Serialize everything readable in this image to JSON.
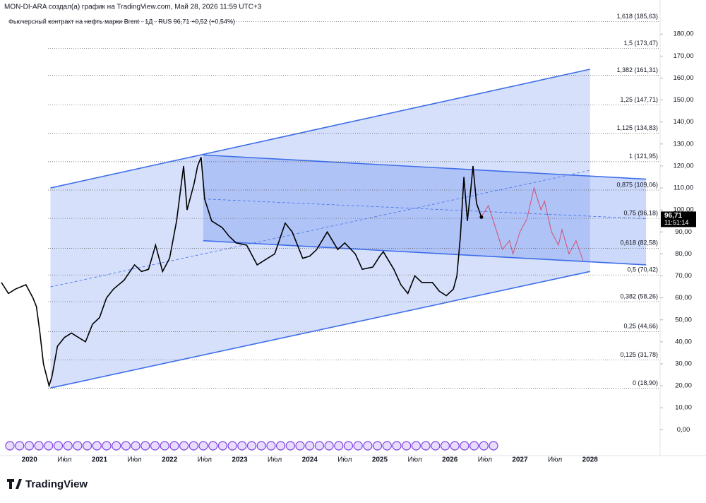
{
  "header": {
    "credit": "MON-DI-ARA создал(а) график на TradingView.com, Май 28, 2026 11:59 UTC+3",
    "logo": "TradingView"
  },
  "chart_data": {
    "type": "line",
    "title": "Фьючерсный контракт на нефть марки Brent · 1Д · RUS  96,71  +0,52 (+0,54%)",
    "price_tag": {
      "value": 96.71,
      "label": "96,71",
      "time": "11:51:14"
    },
    "xlim": [
      2019.58,
      2029.0
    ],
    "xticks": [
      2020,
      {
        "value": 2020.5,
        "label": "Июл"
      },
      2021,
      {
        "value": 2021.5,
        "label": "Июл"
      },
      2022,
      {
        "value": 2022.5,
        "label": "Июл"
      },
      2023,
      {
        "value": 2023.5,
        "label": "Июл"
      },
      2024,
      {
        "value": 2024.5,
        "label": "Июл"
      },
      2025,
      {
        "value": 2025.5,
        "label": "Июл"
      },
      2026,
      {
        "value": 2026.5,
        "label": "Июл"
      },
      2027,
      {
        "value": 2027.5,
        "label": "Июл"
      },
      2028
    ],
    "ylim": [
      -6,
      195.5
    ],
    "yticks": [
      {
        "value": 0,
        "label": "0,00"
      },
      {
        "value": 10,
        "label": "10,00"
      },
      {
        "value": 20,
        "label": "20,00"
      },
      {
        "value": 30,
        "label": "30,00"
      },
      {
        "value": 40,
        "label": "40,00"
      },
      {
        "value": 50,
        "label": "50,00"
      },
      {
        "value": 60,
        "label": "60,00"
      },
      {
        "value": 70,
        "label": "70,00"
      },
      {
        "value": 80,
        "label": "80,00"
      },
      {
        "value": 90,
        "label": "90,00"
      },
      {
        "value": 100,
        "label": "100,00"
      },
      {
        "value": 110,
        "label": "110,00"
      },
      {
        "value": 120,
        "label": "120,00"
      },
      {
        "value": 130,
        "label": "130,00"
      },
      {
        "value": 140,
        "label": "140,00"
      },
      {
        "value": 150,
        "label": "150,00"
      },
      {
        "value": 160,
        "label": "160,00"
      },
      {
        "value": 170,
        "label": "170,00"
      },
      {
        "value": 180,
        "label": "180,00"
      }
    ],
    "fib_levels": [
      {
        "value": 185.63,
        "label": "1,618 (185,63)"
      },
      {
        "value": 173.47,
        "label": "1,5 (173,47)"
      },
      {
        "value": 161.31,
        "label": "1,382 (161,31)"
      },
      {
        "value": 147.71,
        "label": "1,25 (147,71)"
      },
      {
        "value": 134.83,
        "label": "1,125 (134,83)"
      },
      {
        "value": 121.95,
        "label": "1 (121,95)"
      },
      {
        "value": 109.06,
        "label": "0,875 (109,06)"
      },
      {
        "value": 96.18,
        "label": "0,75 (96,18)"
      },
      {
        "value": 82.58,
        "label": "0,618 (82,58)"
      },
      {
        "value": 70.42,
        "label": "0,5 (70,42)"
      },
      {
        "value": 58.26,
        "label": "0,382 (58,26)"
      },
      {
        "value": 44.66,
        "label": "0,25 (44,66)"
      },
      {
        "value": 31.78,
        "label": "0,125 (31,78)"
      },
      {
        "value": 18.9,
        "label": "0 (18,90)"
      }
    ],
    "channels": [
      {
        "color": "#3d6ee8",
        "fill": "rgba(90,130,240,0.25)",
        "upper": [
          [
            2020.3,
            110
          ],
          [
            2028.0,
            164
          ]
        ],
        "lower": [
          [
            2020.3,
            19
          ],
          [
            2028.0,
            72
          ]
        ],
        "mid": [
          [
            2020.3,
            65
          ],
          [
            2028.0,
            118
          ]
        ]
      },
      {
        "color": "#3d6ee8",
        "fill": "rgba(90,130,240,0.3)",
        "upper": [
          [
            2022.48,
            125
          ],
          [
            2028.8,
            114
          ]
        ],
        "lower": [
          [
            2022.48,
            86
          ],
          [
            2028.8,
            75
          ]
        ],
        "mid": [
          [
            2022.48,
            105
          ],
          [
            2028.8,
            96
          ]
        ]
      }
    ],
    "series": [
      {
        "color": "#000000",
        "x": [
          2019.6,
          2019.7,
          2019.8,
          2019.95,
          2020.05,
          2020.1,
          2020.15,
          2020.2,
          2020.28,
          2020.32,
          2020.4,
          2020.5,
          2020.6,
          2020.7,
          2020.8,
          2020.9,
          2021.0,
          2021.1,
          2021.2,
          2021.35,
          2021.5,
          2021.6,
          2021.7,
          2021.8,
          2021.9,
          2022.0,
          2022.1,
          2022.2,
          2022.25,
          2022.35,
          2022.4,
          2022.45,
          2022.5,
          2022.6,
          2022.75,
          2022.85,
          2022.95,
          2023.1,
          2023.25,
          2023.35,
          2023.5,
          2023.65,
          2023.75,
          2023.9,
          2024.0,
          2024.1,
          2024.25,
          2024.4,
          2024.5,
          2024.65,
          2024.75,
          2024.9,
          2025.0,
          2025.05,
          2025.2,
          2025.3,
          2025.4,
          2025.5,
          2025.6,
          2025.75,
          2025.85,
          2025.95,
          2026.05,
          2026.1,
          2026.15,
          2026.2,
          2026.25,
          2026.3,
          2026.33,
          2026.38,
          2026.45
        ],
        "y": [
          67,
          62,
          64,
          66,
          60,
          56,
          44,
          30,
          20,
          24,
          38,
          42,
          44,
          42,
          40,
          48,
          51,
          60,
          64,
          68,
          75,
          72,
          73,
          84,
          72,
          78,
          95,
          120,
          100,
          112,
          120,
          124,
          105,
          95,
          92,
          88,
          85,
          84,
          75,
          77,
          80,
          94,
          90,
          78,
          79,
          82,
          90,
          82,
          85,
          80,
          73,
          74,
          79,
          81,
          73,
          66,
          62,
          70,
          67,
          67,
          63,
          61,
          64,
          70,
          88,
          115,
          95,
          110,
          120,
          103,
          96.71
        ]
      },
      {
        "color": "#d0506f",
        "x": [
          2026.45,
          2026.55,
          2026.75,
          2026.85,
          2026.9,
          2027.0,
          2027.1,
          2027.2,
          2027.3,
          2027.35,
          2027.45,
          2027.55,
          2027.6,
          2027.7,
          2027.8,
          2027.9
        ],
        "y": [
          97,
          102,
          82,
          86,
          80,
          90,
          96,
          110,
          100,
          104,
          90,
          84,
          91,
          80,
          86,
          77
        ]
      }
    ]
  }
}
